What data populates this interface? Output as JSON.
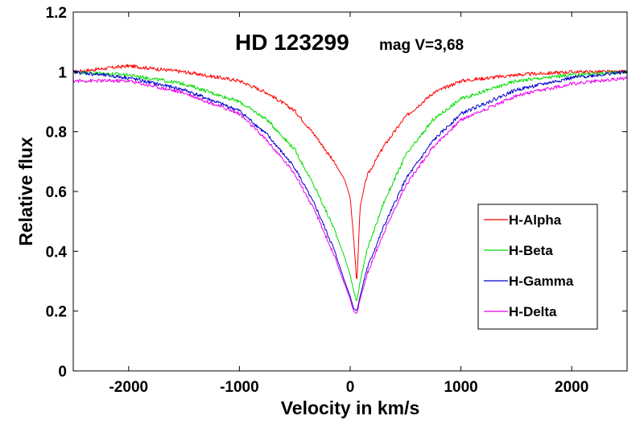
{
  "chart_data": {
    "type": "line",
    "title": "HD 123299",
    "subtitle": "mag V=3,68",
    "xlabel": "Velocity in km/s",
    "ylabel": "Relative flux",
    "xlim": [
      -2500,
      2500
    ],
    "ylim": [
      0,
      1.2
    ],
    "xticks": [
      -2000,
      -1000,
      0,
      1000,
      2000
    ],
    "xtick_labels": [
      "-2000",
      "-1000",
      "0",
      "1000",
      "2000"
    ],
    "yticks": [
      0,
      0.2,
      0.4,
      0.6,
      0.8,
      1,
      1.2
    ],
    "ytick_labels": [
      "0",
      "0.2",
      "0.4",
      "0.6",
      "0.8",
      "1",
      "1.2"
    ],
    "grid": false,
    "legend_position": "lower-right",
    "series": [
      {
        "name": "H-Alpha",
        "color": "#ff0000",
        "x": [
          -2500,
          -2000,
          -1500,
          -1000,
          -750,
          -500,
          -300,
          -150,
          -50,
          0,
          30,
          60,
          90,
          150,
          300,
          500,
          750,
          1000,
          1500,
          2000,
          2500
        ],
        "y": [
          1.0,
          1.02,
          1.0,
          0.97,
          0.93,
          0.87,
          0.78,
          0.7,
          0.64,
          0.58,
          0.45,
          0.29,
          0.55,
          0.65,
          0.75,
          0.85,
          0.93,
          0.97,
          0.99,
          1.0,
          1.0
        ]
      },
      {
        "name": "H-Beta",
        "color": "#00dd00",
        "x": [
          -2500,
          -2000,
          -1500,
          -1000,
          -750,
          -500,
          -300,
          -150,
          -50,
          0,
          30,
          60,
          90,
          150,
          300,
          500,
          750,
          1000,
          1500,
          2000,
          2500
        ],
        "y": [
          1.0,
          0.99,
          0.96,
          0.9,
          0.84,
          0.74,
          0.6,
          0.48,
          0.38,
          0.32,
          0.27,
          0.23,
          0.3,
          0.4,
          0.56,
          0.72,
          0.84,
          0.91,
          0.97,
          0.99,
          1.0
        ]
      },
      {
        "name": "H-Gamma",
        "color": "#0000cc",
        "x": [
          -2500,
          -2000,
          -1500,
          -1000,
          -750,
          -500,
          -300,
          -150,
          -50,
          0,
          30,
          60,
          90,
          150,
          300,
          500,
          750,
          1000,
          1500,
          2000,
          2500
        ],
        "y": [
          1.0,
          0.98,
          0.94,
          0.87,
          0.79,
          0.68,
          0.54,
          0.41,
          0.3,
          0.25,
          0.21,
          0.2,
          0.25,
          0.34,
          0.48,
          0.64,
          0.77,
          0.86,
          0.94,
          0.98,
          1.0
        ]
      },
      {
        "name": "H-Delta",
        "color": "#ee00ee",
        "x": [
          -2500,
          -2000,
          -1500,
          -1000,
          -750,
          -500,
          -300,
          -150,
          -50,
          0,
          30,
          60,
          90,
          150,
          300,
          500,
          750,
          1000,
          1500,
          2000,
          2500
        ],
        "y": [
          0.97,
          0.97,
          0.93,
          0.86,
          0.77,
          0.66,
          0.52,
          0.39,
          0.29,
          0.24,
          0.2,
          0.19,
          0.24,
          0.32,
          0.46,
          0.62,
          0.75,
          0.84,
          0.92,
          0.96,
          0.98
        ]
      }
    ]
  }
}
